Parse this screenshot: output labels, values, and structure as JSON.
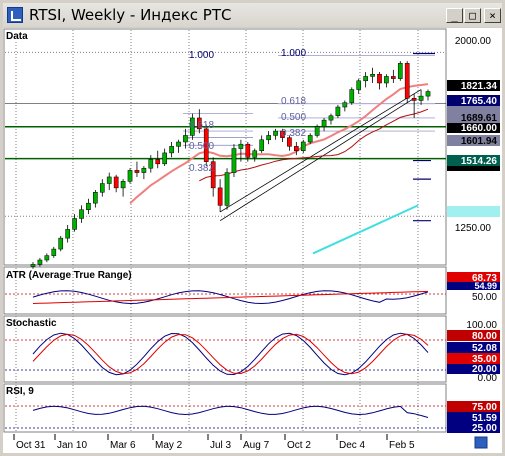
{
  "window": {
    "title": "RTSI, Weekly - Индекс РТС",
    "buttons": {
      "minimize": "_",
      "maximize": "□",
      "close": "×"
    }
  },
  "panes": {
    "data_label": "Data",
    "atr_label": "ATR (Average True Range)",
    "stoch_label": "Stochastic",
    "rsi_label": "RSI, 9"
  },
  "price_axis": {
    "ticks": [
      "2000.00",
      "1250.00"
    ],
    "badges": [
      {
        "text": "1821.34",
        "value": 1821.34,
        "bg": "#000000",
        "fg": "#ffffff"
      },
      {
        "text": "1765.40",
        "value": 1765.4,
        "bg": "#00006e",
        "fg": "#ffffff"
      },
      {
        "text": "1689.61",
        "value": 1689.61,
        "bg": "#8080a0",
        "fg": "#000000"
      },
      {
        "text": "1660.00",
        "value": 1660,
        "bg": "#000000",
        "fg": "#ffffff"
      },
      {
        "text": "1601.94",
        "value": 1601.94,
        "bg": "#8080a0",
        "fg": "#000000"
      },
      {
        "text": "1514.26",
        "value": 1514.26,
        "bg": "#006050",
        "fg": "#ffffff"
      }
    ]
  },
  "fib_levels": {
    "left": [
      "1.000",
      "0.618",
      "0.500",
      "0.382"
    ],
    "right": [
      "1.000",
      "0.618",
      "0.500",
      "0.382"
    ]
  },
  "atr_axis": {
    "badges": [
      {
        "text": "68.73",
        "bg": "#e00000"
      },
      {
        "text": "54.99",
        "bg": "#000080"
      }
    ],
    "ticks": [
      "50.00"
    ]
  },
  "stoch_axis": {
    "ticks": [
      "100.00",
      "0.00"
    ],
    "badges": [
      {
        "text": "80.00",
        "bg": "#c00000"
      },
      {
        "text": "52.08",
        "bg": "#000080"
      },
      {
        "text": "35.00",
        "bg": "#e00000"
      },
      {
        "text": "20.00",
        "bg": "#000080"
      }
    ]
  },
  "rsi_axis": {
    "badges": [
      {
        "text": "75.00",
        "bg": "#c00000"
      },
      {
        "text": "51.59",
        "bg": "#000080"
      },
      {
        "text": "25.00",
        "bg": "#000080"
      }
    ]
  },
  "x_axis": {
    "labels": [
      "Oct 31",
      "Jan 10",
      "Mar 6",
      "May 2",
      "Jul 3",
      "Aug 7",
      "Oct 2",
      "Dec 4",
      "Feb 5"
    ]
  },
  "colors": {
    "up": "#00b000",
    "down": "#ff0000",
    "ma_pink": "#f08080",
    "ma_darkred": "#b01010",
    "ma_cyan": "#40e0e0",
    "grid": "#808080",
    "hline": "#006000"
  },
  "chart_data": {
    "type": "candlestick",
    "title": "RTSI, Weekly - Индекс РТС",
    "ylim": [
      1050,
      2075
    ],
    "ohlc": [
      [
        1020,
        1040,
        1010,
        1030
      ],
      [
        1030,
        1060,
        1020,
        1050
      ],
      [
        1050,
        1080,
        1040,
        1070
      ],
      [
        1070,
        1110,
        1060,
        1100
      ],
      [
        1100,
        1160,
        1090,
        1150
      ],
      [
        1150,
        1210,
        1130,
        1190
      ],
      [
        1190,
        1260,
        1180,
        1240
      ],
      [
        1240,
        1300,
        1220,
        1280
      ],
      [
        1280,
        1330,
        1260,
        1310
      ],
      [
        1310,
        1370,
        1290,
        1360
      ],
      [
        1360,
        1420,
        1340,
        1400
      ],
      [
        1400,
        1450,
        1370,
        1430
      ],
      [
        1430,
        1440,
        1360,
        1380
      ],
      [
        1380,
        1420,
        1340,
        1410
      ],
      [
        1410,
        1470,
        1400,
        1460
      ],
      [
        1460,
        1500,
        1430,
        1450
      ],
      [
        1450,
        1480,
        1420,
        1470
      ],
      [
        1470,
        1530,
        1450,
        1510
      ],
      [
        1510,
        1550,
        1470,
        1490
      ],
      [
        1490,
        1560,
        1480,
        1540
      ],
      [
        1540,
        1590,
        1520,
        1570
      ],
      [
        1570,
        1600,
        1540,
        1590
      ],
      [
        1590,
        1650,
        1560,
        1620
      ],
      [
        1620,
        1720,
        1600,
        1700
      ],
      [
        1700,
        1740,
        1630,
        1650
      ],
      [
        1650,
        1670,
        1480,
        1500
      ],
      [
        1500,
        1520,
        1340,
        1380
      ],
      [
        1380,
        1420,
        1270,
        1300
      ],
      [
        1300,
        1470,
        1280,
        1450
      ],
      [
        1450,
        1580,
        1430,
        1560
      ],
      [
        1560,
        1600,
        1500,
        1580
      ],
      [
        1580,
        1590,
        1500,
        1520
      ],
      [
        1520,
        1560,
        1500,
        1550
      ],
      [
        1550,
        1620,
        1540,
        1600
      ],
      [
        1600,
        1640,
        1580,
        1620
      ],
      [
        1620,
        1650,
        1600,
        1640
      ],
      [
        1640,
        1650,
        1590,
        1610
      ],
      [
        1610,
        1620,
        1550,
        1570
      ],
      [
        1570,
        1590,
        1530,
        1550
      ],
      [
        1550,
        1600,
        1540,
        1590
      ],
      [
        1590,
        1630,
        1580,
        1620
      ],
      [
        1620,
        1670,
        1610,
        1660
      ],
      [
        1660,
        1700,
        1640,
        1690
      ],
      [
        1690,
        1720,
        1670,
        1710
      ],
      [
        1710,
        1760,
        1700,
        1750
      ],
      [
        1750,
        1780,
        1730,
        1770
      ],
      [
        1770,
        1840,
        1760,
        1830
      ],
      [
        1830,
        1880,
        1810,
        1870
      ],
      [
        1870,
        1910,
        1840,
        1890
      ],
      [
        1890,
        1930,
        1860,
        1900
      ],
      [
        1900,
        1910,
        1830,
        1860
      ],
      [
        1860,
        1900,
        1840,
        1890
      ],
      [
        1890,
        1920,
        1860,
        1880
      ],
      [
        1880,
        1960,
        1870,
        1950
      ],
      [
        1950,
        1960,
        1770,
        1790
      ],
      [
        1790,
        1810,
        1700,
        1780
      ],
      [
        1780,
        1830,
        1760,
        1800
      ],
      [
        1800,
        1830,
        1780,
        1821
      ]
    ],
    "indicators": [
      "ATR (Average True Range)",
      "Stochastic",
      "RSI, 9"
    ]
  }
}
